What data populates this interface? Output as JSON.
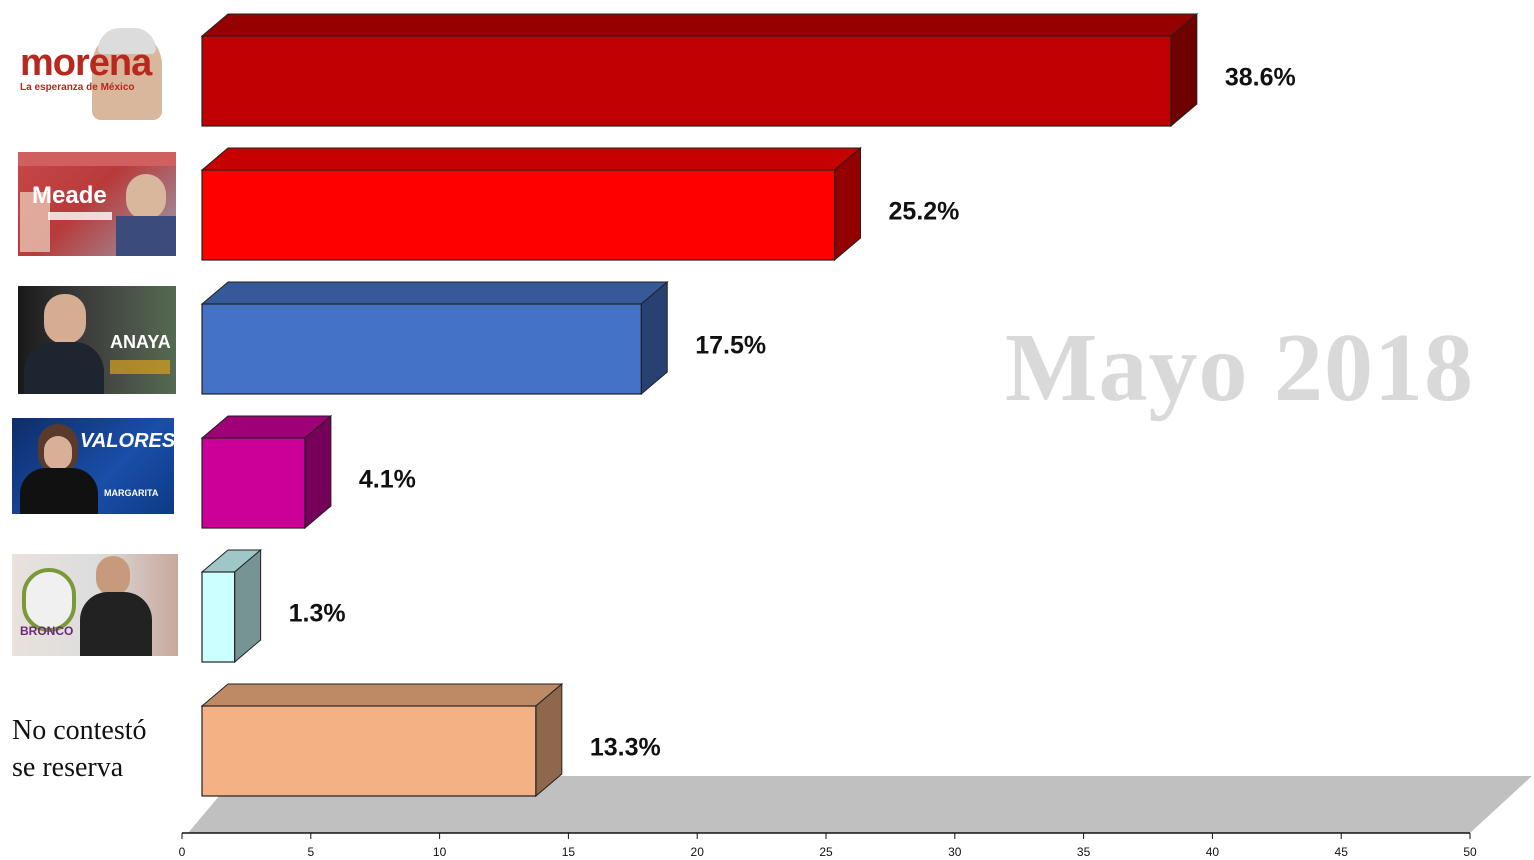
{
  "chart_data": {
    "type": "bar",
    "orientation": "horizontal",
    "style": "3d",
    "categories": [
      "Morena",
      "Meade",
      "Anaya",
      "Margarita",
      "Bronco",
      "No contestó se reserva"
    ],
    "values": [
      38.6,
      25.2,
      17.5,
      4.1,
      1.3,
      13.3
    ],
    "value_labels": [
      "38.6%",
      "25.2%",
      "17.5%",
      "4.1%",
      "1.3%",
      "13.3%"
    ],
    "bar_colors": [
      "#c00000",
      "#ff0000",
      "#4472c4",
      "#cc0099",
      "#ccffff",
      "#f4b183"
    ],
    "xlim": [
      0,
      50
    ],
    "xticks": [
      "0",
      "5",
      "10",
      "15",
      "20",
      "25",
      "30",
      "35",
      "40",
      "45",
      "50"
    ],
    "grid": false,
    "legend": "none",
    "watermark": "Mayo 2018",
    "last_category_label": "No contestó\nse reserva"
  },
  "thumbnails": [
    {
      "name": "morena-logo",
      "text": "morena",
      "subtext": "La esperanza de México",
      "bg": "#ffffff",
      "fg": "#b7281e"
    },
    {
      "name": "meade-banner",
      "text": "Meade",
      "bg": "#b84040",
      "fg": "#ffffff"
    },
    {
      "name": "anaya-banner",
      "text": "ANAYA",
      "bg": "#2f3a3a",
      "fg": "#ffffff"
    },
    {
      "name": "valores-banner",
      "text": "VALORES",
      "subtext": "MARGARITA",
      "bg": "#143e8c",
      "fg": "#ffffff"
    },
    {
      "name": "bronco-banner",
      "text": "BRONCO",
      "bg": "#e8d8d0",
      "fg": "#6a2a7a"
    }
  ]
}
